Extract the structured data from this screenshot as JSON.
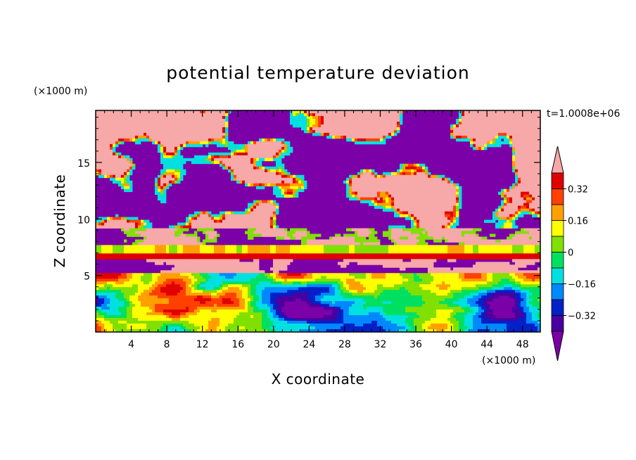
{
  "chart_data": {
    "type": "heatmap",
    "title": "potential temperature deviation",
    "xlabel": "X coordinate",
    "ylabel": "Z coordinate",
    "x_unit": "(×1000 m)",
    "y_unit": "(×1000 m)",
    "time_label": "t=1.0008e+06",
    "xlim": [
      0,
      50
    ],
    "ylim": [
      0,
      19.6
    ],
    "x_ticks": [
      4,
      8,
      12,
      16,
      20,
      24,
      28,
      32,
      36,
      40,
      44,
      48
    ],
    "y_ticks": [
      5,
      10,
      15
    ],
    "colorbar": {
      "levels": [
        -0.4,
        -0.32,
        -0.24,
        -0.16,
        -0.08,
        0,
        0.08,
        0.16,
        0.24,
        0.32,
        0.4
      ],
      "tick_values": [
        -0.32,
        -0.16,
        0,
        0.16,
        0.32
      ],
      "tick_labels": [
        "−0.32",
        "−0.16",
        "0",
        "0.16",
        "0.32"
      ],
      "colors": [
        "#7b00a8",
        "#4a00a0",
        "#0020c8",
        "#0088ff",
        "#00e0e0",
        "#00e060",
        "#80e000",
        "#ffff00",
        "#ffa000",
        "#ff4000",
        "#e00000",
        "#f7a8a8"
      ],
      "extend": "both"
    },
    "grid": false
  }
}
